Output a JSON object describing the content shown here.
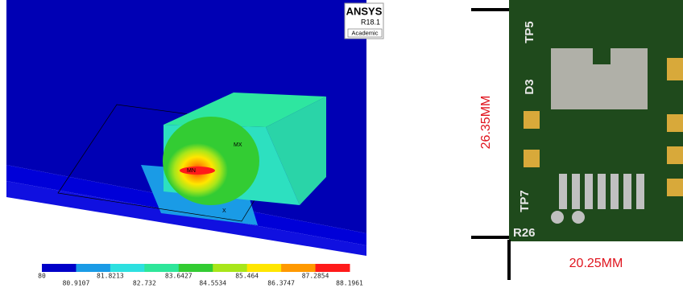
{
  "simulation": {
    "logo": "ANSYS",
    "version": "R18.1",
    "license": "Academic",
    "max_label": "MX",
    "min_label": "MN",
    "axis_label": "X",
    "colorbar": {
      "colors": [
        "#0000c8",
        "#1a9be6",
        "#2de0e0",
        "#2ee69a",
        "#33cc33",
        "#a8e61a",
        "#ffe600",
        "#ff9900",
        "#ff1a1a"
      ],
      "labels": [
        "80",
        "80.9107",
        "81.8213",
        "82.732",
        "83.6427",
        "84.5534",
        "85.464",
        "86.3747",
        "87.2854",
        "88.1961"
      ]
    }
  },
  "photo": {
    "silkscreen": [
      "TP5",
      "D3",
      "TP7",
      "R26"
    ],
    "height_label": "26.35MM",
    "width_label": "20.25MM"
  }
}
